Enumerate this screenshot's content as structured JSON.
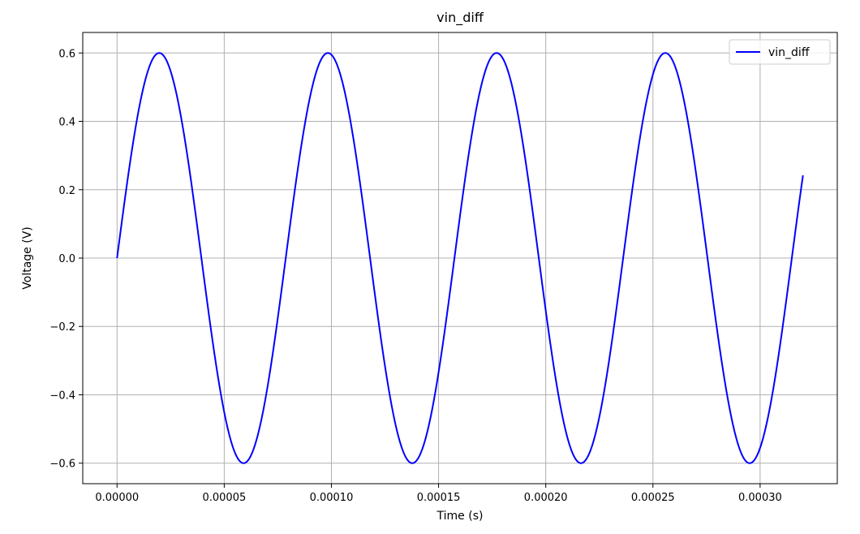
{
  "chart_data": {
    "type": "line",
    "title": "vin_diff",
    "xlabel": "Time (s)",
    "ylabel": "Voltage (V)",
    "xlim": [
      -1.6e-05,
      0.000336
    ],
    "ylim": [
      -0.66,
      0.66
    ],
    "x_ticks": [
      0.0,
      5e-05,
      0.0001,
      0.00015,
      0.0002,
      0.00025,
      0.0003
    ],
    "x_tick_labels": [
      "0.00000",
      "0.00005",
      "0.00010",
      "0.00015",
      "0.00020",
      "0.00025",
      "0.00030"
    ],
    "y_ticks": [
      -0.6,
      -0.4,
      -0.2,
      0.0,
      0.2,
      0.4,
      0.6
    ],
    "y_tick_labels": [
      "−0.6",
      "−0.4",
      "−0.2",
      "0.0",
      "0.2",
      "0.4",
      "0.6"
    ],
    "grid": true,
    "legend": {
      "position": "top-right",
      "entries": [
        "vin_diff"
      ]
    },
    "series": [
      {
        "name": "vin_diff",
        "color": "#0000ff",
        "x": [
          0,
          1e-05,
          2e-05,
          3e-05,
          4e-05,
          5e-05,
          6e-05,
          7e-05,
          8e-05,
          9e-05,
          0.0001,
          0.00011,
          0.00012,
          0.00013,
          0.00014,
          0.00015,
          0.00016,
          0.00017,
          0.00018,
          0.00019,
          0.0002,
          0.00021,
          0.00022,
          0.00023,
          0.00024,
          0.00025,
          0.00026,
          0.00027,
          0.00028,
          0.00029,
          0.0003,
          0.00031,
          0.00032
        ],
        "y": [
          0.0,
          0.424,
          0.6,
          0.424,
          0.0,
          -0.424,
          -0.6,
          -0.424,
          0.0,
          0.424,
          0.6,
          0.424,
          0.0,
          -0.424,
          -0.6,
          -0.424,
          0.0,
          0.424,
          0.6,
          0.424,
          0.0,
          -0.424,
          -0.6,
          -0.424,
          0.0,
          0.424,
          0.6,
          0.424,
          0.0,
          -0.424,
          -0.6,
          -0.424,
          0.237
        ],
        "peak_amplitude": 0.6,
        "period": 7.87e-05
      }
    ]
  }
}
